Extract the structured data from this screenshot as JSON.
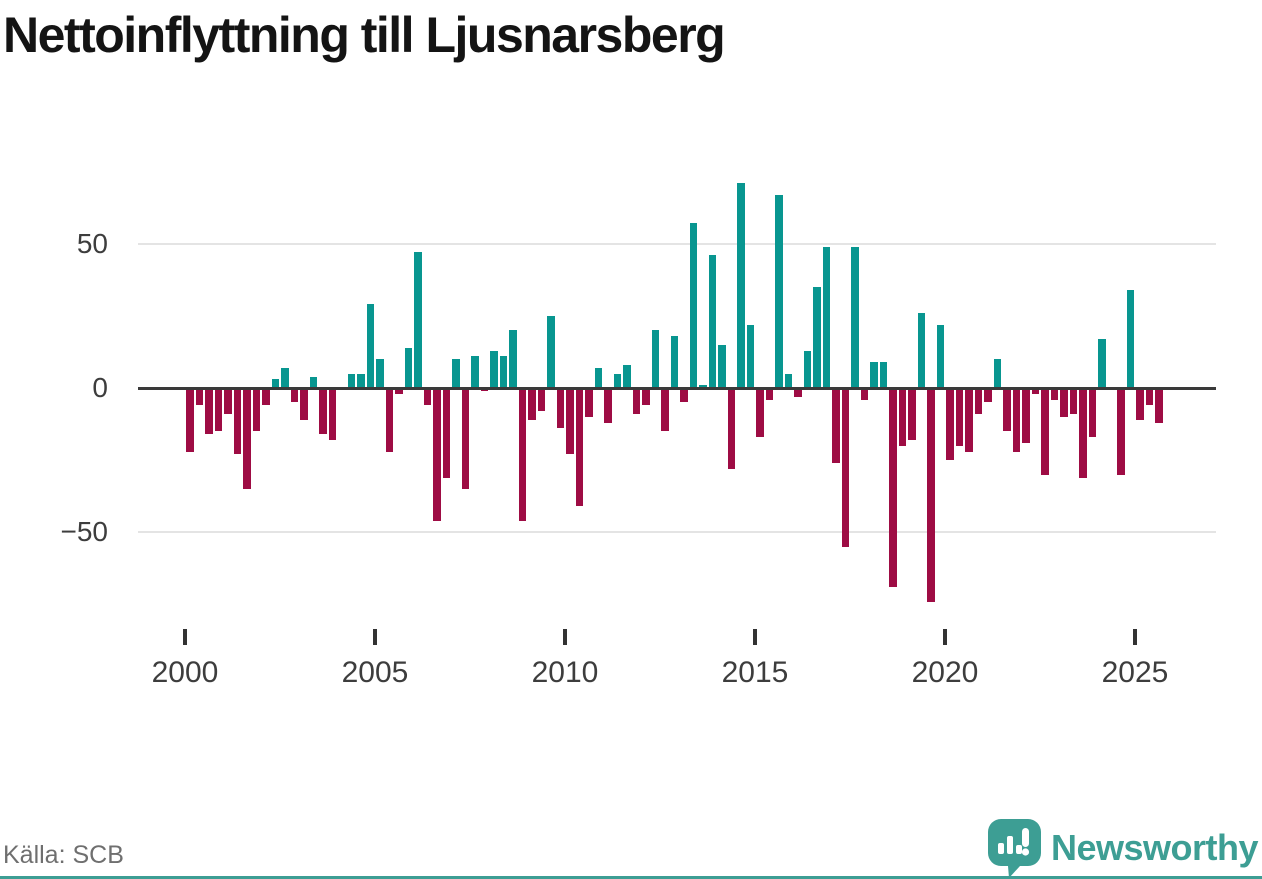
{
  "title": "Nettoinflyttning till Ljusnarsberg",
  "source": "Källa: SCB",
  "branding": {
    "name": "Newsworthy",
    "icon": "speech-bubble-chart-icon"
  },
  "colors": {
    "positive": "#089690",
    "negative": "#9e0c44",
    "axis": "#3a3a3a",
    "grid": "#e4e4e4",
    "tick_text": "#3d3d3d",
    "title_text": "#141414",
    "source_text": "#6f6f6f",
    "brand": "#3d9e94"
  },
  "chart_data": {
    "type": "bar",
    "title": "Nettoinflyttning till Ljusnarsberg",
    "xlabel": "",
    "ylabel": "",
    "legend": "none",
    "grid": "horizontal gridlines at 50 and -50, dark zero axis",
    "ylim": [
      -80,
      78
    ],
    "y_ticks": [
      50,
      0,
      -50
    ],
    "y_tick_labels": [
      "50",
      "0",
      "−50"
    ],
    "x_ticks": [
      2000,
      2005,
      2010,
      2015,
      2020,
      2025
    ],
    "x_tick_labels": [
      "2000",
      "2005",
      "2010",
      "2015",
      "2020",
      "2025"
    ],
    "frequency": "quarterly",
    "series": [
      {
        "name": "Nettoinflyttning",
        "quarters": [
          "2000Q1",
          "2000Q2",
          "2000Q3",
          "2000Q4",
          "2001Q1",
          "2001Q2",
          "2001Q3",
          "2001Q4",
          "2002Q1",
          "2002Q2",
          "2002Q3",
          "2002Q4",
          "2003Q1",
          "2003Q2",
          "2003Q3",
          "2003Q4",
          "2004Q1",
          "2004Q2",
          "2004Q3",
          "2004Q4",
          "2005Q1",
          "2005Q2",
          "2005Q3",
          "2005Q4",
          "2006Q1",
          "2006Q2",
          "2006Q3",
          "2006Q4",
          "2007Q1",
          "2007Q2",
          "2007Q3",
          "2007Q4",
          "2008Q1",
          "2008Q2",
          "2008Q3",
          "2008Q4",
          "2009Q1",
          "2009Q2",
          "2009Q3",
          "2009Q4",
          "2010Q1",
          "2010Q2",
          "2010Q3",
          "2010Q4",
          "2011Q1",
          "2011Q2",
          "2011Q3",
          "2011Q4",
          "2012Q1",
          "2012Q2",
          "2012Q3",
          "2012Q4",
          "2013Q1",
          "2013Q2",
          "2013Q3",
          "2013Q4",
          "2014Q1",
          "2014Q2",
          "2014Q3",
          "2014Q4",
          "2015Q1",
          "2015Q2",
          "2015Q3",
          "2015Q4",
          "2016Q1",
          "2016Q2",
          "2016Q3",
          "2016Q4",
          "2017Q1",
          "2017Q2",
          "2017Q3",
          "2017Q4",
          "2018Q1",
          "2018Q2",
          "2018Q3",
          "2018Q4",
          "2019Q1",
          "2019Q2",
          "2019Q3",
          "2019Q4",
          "2020Q1",
          "2020Q2",
          "2020Q3",
          "2020Q4",
          "2021Q1",
          "2021Q2",
          "2021Q3",
          "2021Q4",
          "2022Q1",
          "2022Q2",
          "2022Q3",
          "2022Q4",
          "2023Q1",
          "2023Q2",
          "2023Q3",
          "2023Q4",
          "2024Q1",
          "2024Q2",
          "2024Q3",
          "2024Q4",
          "2025Q1",
          "2025Q2",
          "2025Q3"
        ],
        "values": [
          -22,
          -6,
          -16,
          -15,
          -9,
          -23,
          -35,
          -15,
          -6,
          3,
          7,
          -5,
          -11,
          4,
          -16,
          -18,
          0,
          5,
          5,
          29,
          10,
          -22,
          -2,
          14,
          47,
          -6,
          -46,
          -31,
          10,
          -35,
          11,
          -1,
          13,
          11,
          20,
          -46,
          -11,
          -8,
          25,
          -14,
          -23,
          -41,
          -10,
          7,
          -12,
          5,
          8,
          -9,
          -6,
          20,
          -15,
          18,
          -5,
          57,
          1,
          46,
          15,
          -28,
          71,
          22,
          -17,
          -4,
          67,
          5,
          -3,
          13,
          35,
          49,
          -26,
          -55,
          49,
          -4,
          9,
          9,
          -69,
          -20,
          -18,
          26,
          -74,
          22,
          -25,
          -20,
          -22,
          -9,
          -5,
          10,
          -15,
          -22,
          -19,
          -2,
          -30,
          -4,
          -10,
          -9,
          -31,
          -17,
          17,
          0,
          -30,
          34,
          -11,
          -6,
          -12
        ]
      }
    ]
  }
}
